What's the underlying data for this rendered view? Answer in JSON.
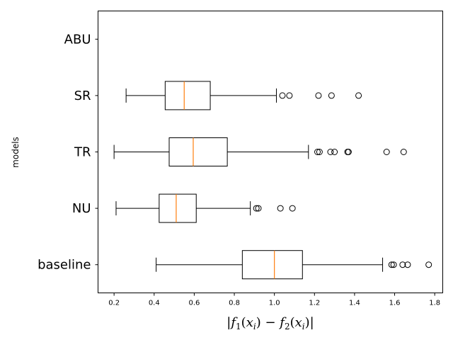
{
  "chart_data": {
    "type": "boxplot",
    "orientation": "horizontal",
    "title": "",
    "xlabel": "|f_1(x_i) − f_2(x_i)|",
    "ylabel": "models",
    "xlim": [
      0.12,
      1.84
    ],
    "xticks": [
      "0.2",
      "0.4",
      "0.6",
      "0.8",
      "1.0",
      "1.2",
      "1.4",
      "1.6",
      "1.8"
    ],
    "categories": [
      "ABU",
      "SR",
      "TR",
      "NU",
      "baseline"
    ],
    "series": [
      {
        "category": "ABU",
        "empty": true
      },
      {
        "category": "SR",
        "whisker_low": 0.26,
        "q1": 0.455,
        "median": 0.55,
        "q3": 0.68,
        "whisker_high": 1.01,
        "outliers": [
          1.04,
          1.075,
          1.22,
          1.285,
          1.42
        ]
      },
      {
        "category": "TR",
        "whisker_low": 0.2,
        "q1": 0.475,
        "median": 0.595,
        "q3": 0.765,
        "whisker_high": 1.17,
        "outliers": [
          1.215,
          1.225,
          1.28,
          1.3,
          1.365,
          1.37,
          1.56,
          1.645
        ]
      },
      {
        "category": "NU",
        "whisker_low": 0.21,
        "q1": 0.425,
        "median": 0.51,
        "q3": 0.61,
        "whisker_high": 0.88,
        "outliers": [
          0.91,
          0.92,
          1.03,
          1.09
        ]
      },
      {
        "category": "baseline",
        "whisker_low": 0.41,
        "q1": 0.84,
        "median": 1.0,
        "q3": 1.14,
        "whisker_high": 1.54,
        "outliers": [
          1.585,
          1.595,
          1.64,
          1.665,
          1.77
        ]
      }
    ],
    "colors": {
      "box": "#000000",
      "median": "#ff7f0e",
      "outlier": "#000000"
    },
    "grid": false
  }
}
